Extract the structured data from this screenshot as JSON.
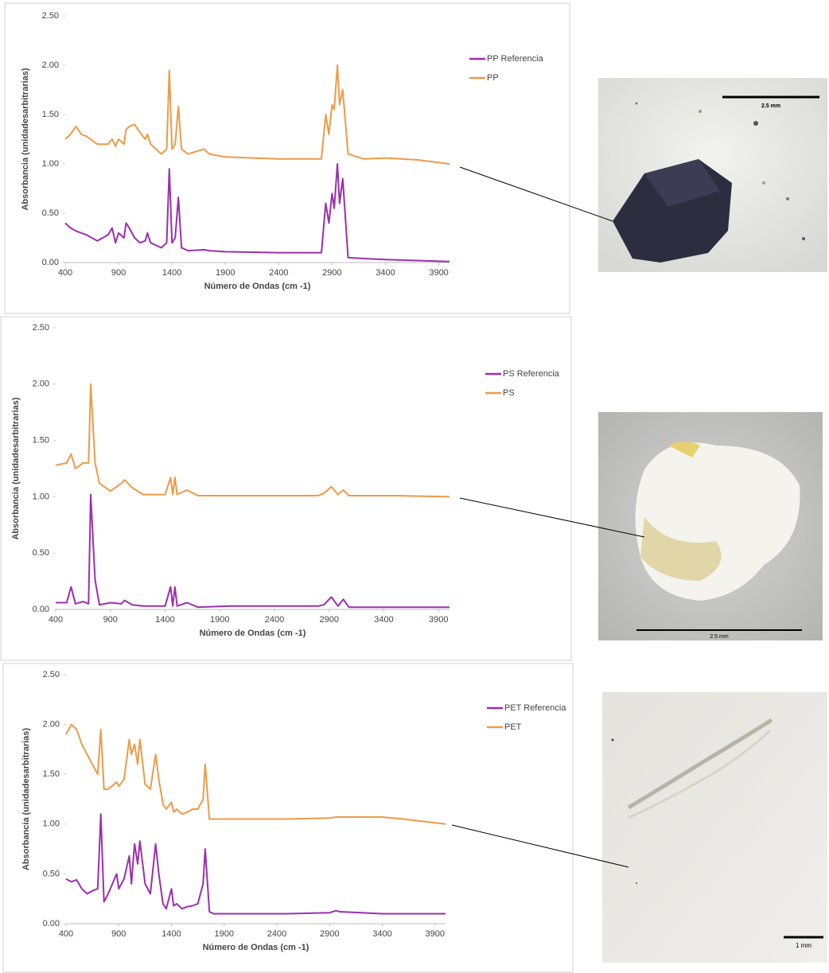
{
  "chart_data": [
    {
      "type": "line",
      "x_label": "Número de Ondas (cm -1)",
      "y_label": "Absorbancia (unidadesarbitrarias)",
      "x": [
        400,
        450,
        500,
        550,
        600,
        700,
        800,
        840,
        870,
        900,
        950,
        970,
        1000,
        1050,
        1100,
        1150,
        1170,
        1200,
        1300,
        1350,
        1375,
        1400,
        1430,
        1460,
        1490,
        1550,
        1700,
        1750,
        1900,
        2400,
        2800,
        2840,
        2870,
        2900,
        2920,
        2950,
        2970,
        3000,
        3050,
        3200,
        3400,
        3700,
        4000
      ],
      "series": [
        {
          "name": "PP Referencia",
          "color": "#9b2fae",
          "values": [
            0.4,
            0.35,
            0.32,
            0.3,
            0.28,
            0.22,
            0.28,
            0.35,
            0.2,
            0.3,
            0.25,
            0.4,
            0.35,
            0.25,
            0.2,
            0.22,
            0.3,
            0.2,
            0.15,
            0.2,
            0.95,
            0.2,
            0.25,
            0.66,
            0.15,
            0.12,
            0.13,
            0.12,
            0.11,
            0.1,
            0.1,
            0.6,
            0.4,
            0.7,
            0.55,
            1.0,
            0.6,
            0.85,
            0.05,
            0.04,
            0.03,
            0.02,
            0.01
          ]
        },
        {
          "name": "PP",
          "color": "#ee9a48",
          "values": [
            1.25,
            1.3,
            1.38,
            1.3,
            1.28,
            1.2,
            1.2,
            1.25,
            1.18,
            1.25,
            1.2,
            1.35,
            1.38,
            1.4,
            1.32,
            1.25,
            1.3,
            1.2,
            1.1,
            1.15,
            1.95,
            1.15,
            1.2,
            1.58,
            1.15,
            1.1,
            1.15,
            1.1,
            1.07,
            1.05,
            1.05,
            1.5,
            1.3,
            1.6,
            1.55,
            2.0,
            1.6,
            1.75,
            1.1,
            1.05,
            1.06,
            1.04,
            1.0
          ]
        }
      ],
      "xlim": [
        400,
        4000
      ],
      "xticks": [
        400,
        900,
        1400,
        1900,
        2400,
        2900,
        3400,
        3900
      ],
      "ylim": [
        0,
        2.5
      ],
      "yticks": [
        {
          "value": 0,
          "label": "0.00"
        },
        {
          "value": 0.5,
          "label": "0.50"
        },
        {
          "value": 1,
          "label": "1.00"
        },
        {
          "value": 1.5,
          "label": "1.50"
        },
        {
          "value": 2,
          "label": "2.00"
        },
        {
          "value": 2.5,
          "label": "2.50"
        }
      ],
      "grid": false,
      "legend": "right"
    },
    {
      "type": "line",
      "x_label": "Número de Ondas (cm -1)",
      "y_label": "Absorbancia (unidadesarbitrarias)",
      "x": [
        400,
        500,
        540,
        580,
        650,
        700,
        720,
        760,
        800,
        900,
        1000,
        1030,
        1100,
        1200,
        1400,
        1450,
        1470,
        1490,
        1510,
        1600,
        1700,
        2000,
        2800,
        2850,
        2920,
        2980,
        3030,
        3080,
        3500,
        4000
      ],
      "series": [
        {
          "name": "PS Referencia",
          "color": "#9b2fae",
          "values": [
            0.06,
            0.06,
            0.2,
            0.05,
            0.07,
            0.05,
            1.02,
            0.26,
            0.04,
            0.06,
            0.05,
            0.08,
            0.04,
            0.03,
            0.03,
            0.2,
            0.03,
            0.2,
            0.03,
            0.06,
            0.02,
            0.03,
            0.03,
            0.04,
            0.11,
            0.03,
            0.09,
            0.02,
            0.02,
            0.02
          ]
        },
        {
          "name": "PS",
          "color": "#ee9a48",
          "values": [
            1.28,
            1.3,
            1.38,
            1.25,
            1.3,
            1.3,
            2.0,
            1.3,
            1.12,
            1.05,
            1.12,
            1.15,
            1.08,
            1.02,
            1.02,
            1.17,
            1.02,
            1.17,
            1.02,
            1.06,
            1.01,
            1.01,
            1.01,
            1.03,
            1.09,
            1.02,
            1.06,
            1.01,
            1.01,
            1.0
          ]
        }
      ],
      "xlim": [
        400,
        4000
      ],
      "xticks": [
        400,
        900,
        1400,
        1900,
        2400,
        2900,
        3400,
        3900
      ],
      "ylim": [
        0,
        2.5
      ],
      "yticks": [
        {
          "value": 0,
          "label": "0.00"
        },
        {
          "value": 0.5,
          "label": "0.50"
        },
        {
          "value": 1,
          "label": "1.00"
        },
        {
          "value": 1.5,
          "label": "1.50"
        },
        {
          "value": 2,
          "label": "2.00"
        },
        {
          "value": 2.5,
          "label": "2.50"
        }
      ],
      "grid": false,
      "legend": "right"
    },
    {
      "type": "line",
      "x_label": "Número de Ondas (cm -1)",
      "y_label": "Absorbancia (unidadesarbitrarias)",
      "x": [
        400,
        450,
        500,
        550,
        600,
        650,
        700,
        730,
        760,
        800,
        880,
        900,
        950,
        1000,
        1020,
        1050,
        1080,
        1100,
        1150,
        1200,
        1250,
        1280,
        1320,
        1350,
        1400,
        1420,
        1450,
        1500,
        1550,
        1600,
        1650,
        1700,
        1720,
        1760,
        1800,
        2000,
        2500,
        2900,
        2960,
        3000,
        3400,
        3600,
        4000
      ],
      "series": [
        {
          "name": "PET Referencia",
          "color": "#9b2fae",
          "values": [
            0.45,
            0.42,
            0.44,
            0.35,
            0.3,
            0.33,
            0.35,
            1.1,
            0.22,
            0.3,
            0.5,
            0.35,
            0.45,
            0.68,
            0.4,
            0.8,
            0.6,
            0.83,
            0.4,
            0.3,
            0.8,
            0.5,
            0.2,
            0.15,
            0.35,
            0.18,
            0.2,
            0.15,
            0.17,
            0.18,
            0.2,
            0.4,
            0.75,
            0.12,
            0.1,
            0.1,
            0.1,
            0.11,
            0.13,
            0.12,
            0.1,
            0.1,
            0.1
          ]
        },
        {
          "name": "PET",
          "color": "#ee9a48",
          "values": [
            1.9,
            2.0,
            1.95,
            1.8,
            1.7,
            1.6,
            1.5,
            1.95,
            1.35,
            1.35,
            1.42,
            1.38,
            1.45,
            1.85,
            1.7,
            1.8,
            1.6,
            1.85,
            1.4,
            1.35,
            1.7,
            1.45,
            1.2,
            1.15,
            1.22,
            1.12,
            1.15,
            1.1,
            1.12,
            1.15,
            1.15,
            1.25,
            1.6,
            1.05,
            1.05,
            1.05,
            1.05,
            1.06,
            1.07,
            1.07,
            1.07,
            1.05,
            1.0
          ]
        }
      ],
      "xlim": [
        400,
        4000
      ],
      "xticks": [
        400,
        900,
        1400,
        1900,
        2400,
        2900,
        3400,
        3900
      ],
      "ylim": [
        0,
        2.5
      ],
      "yticks": [
        {
          "value": 0,
          "label": "0.00"
        },
        {
          "value": 0.5,
          "label": "0.50"
        },
        {
          "value": 1,
          "label": "1.00"
        },
        {
          "value": 1.5,
          "label": "1.50"
        },
        {
          "value": 2,
          "label": "2.00"
        },
        {
          "value": 2.5,
          "label": "2.50"
        }
      ],
      "grid": false,
      "legend": "right"
    }
  ],
  "images": [
    {
      "scale_label": "2.5 mm"
    },
    {
      "scale_label": "2.5 mm"
    },
    {
      "scale_label": "1 mm"
    }
  ]
}
